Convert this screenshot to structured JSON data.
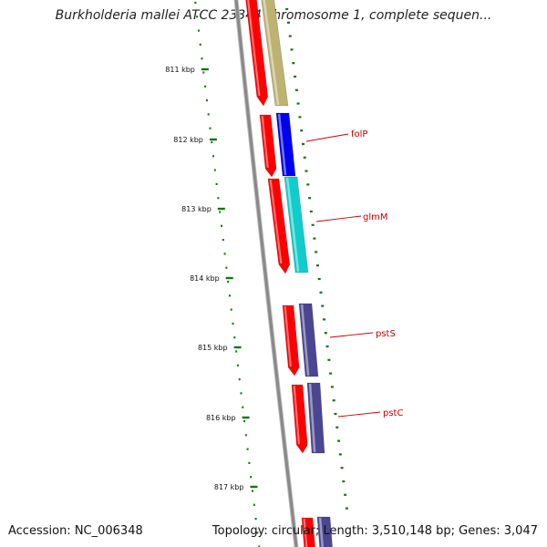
{
  "title": "Burkholderia mallei ATCC 23344 chromosome 1, complete sequen...",
  "footer": {
    "accession": "Accession: NC_006348",
    "summary": "Topology: circular; Length: 3,510,148 bp; Genes: 3,047"
  },
  "colors": {
    "backbone": "#888888",
    "ticks": "#117711",
    "forward_cds": "#ff0000",
    "tan": "#bdb270",
    "blue": "#0000ee",
    "cyan": "#11cccc",
    "slate": "#4b4690",
    "label": "#cc0000"
  },
  "ticks": [
    {
      "label": "811 kbp"
    },
    {
      "label": "812 kbp"
    },
    {
      "label": "813 kbp"
    },
    {
      "label": "814 kbp"
    },
    {
      "label": "815 kbp"
    },
    {
      "label": "816 kbp"
    },
    {
      "label": "817 kbp"
    }
  ],
  "genes": [
    {
      "label": "",
      "color": "tan"
    },
    {
      "label": "folP",
      "color": "blue"
    },
    {
      "label": "glmM",
      "color": "cyan"
    },
    {
      "label": "pstS",
      "color": "slate"
    },
    {
      "label": "pstC",
      "color": "slate"
    },
    {
      "label": "",
      "color": "slate"
    }
  ]
}
